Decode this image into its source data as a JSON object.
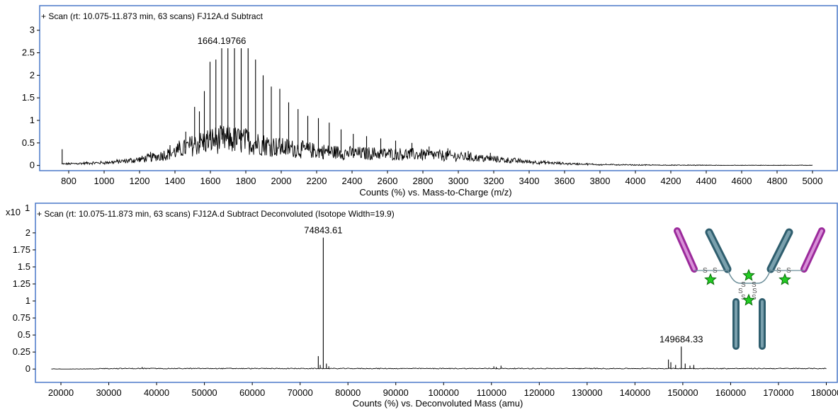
{
  "colors": {
    "frame": "#4a78c8",
    "trace": "#000000",
    "heavy": "#2f5e6e",
    "light": "#9b2a9b",
    "star": "#22cc22"
  },
  "chart_data": [
    {
      "type": "line",
      "title": "+ Scan (rt: 10.075-11.873 min, 63 scans) FJ12A.d  Subtract",
      "xlabel": "Counts (%) vs. Mass-to-Charge (m/z)",
      "ylabel": "",
      "xlim": [
        740,
        5040
      ],
      "ylim": [
        -0.1,
        3.2
      ],
      "xticks": [
        800,
        1000,
        1200,
        1400,
        1600,
        1800,
        2000,
        2200,
        2400,
        2600,
        2800,
        3000,
        3200,
        3400,
        3600,
        3800,
        4000,
        4200,
        4400,
        4600,
        4800,
        5000
      ],
      "yticks": [
        0,
        0.5,
        1,
        1.5,
        2,
        2.5,
        3
      ],
      "ytick_labels": [
        "0",
        "0.5",
        "1",
        "1.5",
        "2",
        "2.5",
        "3"
      ],
      "baseline": {
        "x": [
          760,
          900,
          1000,
          1100,
          1200,
          1300,
          1400,
          1500,
          1600,
          1700,
          1800,
          1900,
          2000,
          2200,
          2400,
          2600,
          2800,
          3000,
          3200,
          3400,
          3600,
          3800,
          4000,
          4500,
          5000
        ],
        "y": [
          0.03,
          0.05,
          0.06,
          0.09,
          0.13,
          0.2,
          0.3,
          0.45,
          0.56,
          0.58,
          0.54,
          0.47,
          0.4,
          0.32,
          0.27,
          0.26,
          0.24,
          0.2,
          0.14,
          0.08,
          0.04,
          0.02,
          0.01,
          0.0,
          0.0
        ]
      },
      "peaks": {
        "x": [
          763,
          1262,
          1372,
          1424,
          1461,
          1511,
          1538,
          1566,
          1598,
          1631,
          1664,
          1699,
          1736,
          1774,
          1813,
          1855,
          1898,
          1944,
          1992,
          2042,
          2095,
          2150,
          2210,
          2271,
          2338,
          2407,
          2482,
          2562,
          2646,
          2738,
          2835,
          2941,
          3056,
          3181
        ],
        "y": [
          0.36,
          0.3,
          0.45,
          0.55,
          0.75,
          1.3,
          1.2,
          1.65,
          2.3,
          2.35,
          2.6,
          2.6,
          2.6,
          2.6,
          2.6,
          2.35,
          2.0,
          1.75,
          1.7,
          1.4,
          1.25,
          1.1,
          1.05,
          0.95,
          0.8,
          0.7,
          0.65,
          0.6,
          0.55,
          0.5,
          0.42,
          0.38,
          0.32,
          0.28
        ]
      },
      "annotations": [
        {
          "x": 1664.19766,
          "y": 2.6,
          "text": "1664.19766"
        }
      ]
    },
    {
      "type": "line",
      "title": "+ Scan (rt: 10.075-11.873 min, 63 scans) FJ12A.d  Subtract Deconvoluted (Isotope Width=19.9)",
      "xlabel": "Counts (%) vs. Deconvoluted Mass (amu)",
      "ylabel": "",
      "y_multiplier": "x10",
      "y_exponent": "1",
      "xlim": [
        16000,
        182000
      ],
      "ylim": [
        -0.05,
        2.3
      ],
      "xticks": [
        20000,
        30000,
        40000,
        50000,
        60000,
        70000,
        80000,
        90000,
        100000,
        110000,
        120000,
        130000,
        140000,
        150000,
        160000,
        170000,
        180000
      ],
      "yticks": [
        0,
        0.25,
        0.5,
        0.75,
        1,
        1.25,
        1.5,
        1.75,
        2
      ],
      "ytick_labels": [
        "0",
        "0.25",
        "0.5",
        "0.75",
        "1",
        "1.25",
        "1.5",
        "1.75",
        "2"
      ],
      "peaks": {
        "x": [
          37000,
          73800,
          74200,
          74843.61,
          75500,
          76000,
          110500,
          111000,
          112000,
          147000,
          147500,
          148500,
          149684.33,
          150500,
          151500,
          152300
        ],
        "y": [
          0.03,
          0.19,
          0.06,
          1.93,
          0.08,
          0.04,
          0.04,
          0.03,
          0.05,
          0.14,
          0.1,
          0.06,
          0.33,
          0.08,
          0.05,
          0.06
        ]
      },
      "annotations": [
        {
          "x": 74843.61,
          "y": 1.93,
          "text": "74843.61"
        },
        {
          "x": 149684.33,
          "y": 0.33,
          "text": "149684.33"
        }
      ]
    }
  ],
  "schematic": {
    "disulfide_labels": [
      "S",
      "S",
      "S",
      "S",
      "S",
      "S",
      "S",
      "S",
      "S",
      "S",
      "S",
      "S"
    ]
  }
}
